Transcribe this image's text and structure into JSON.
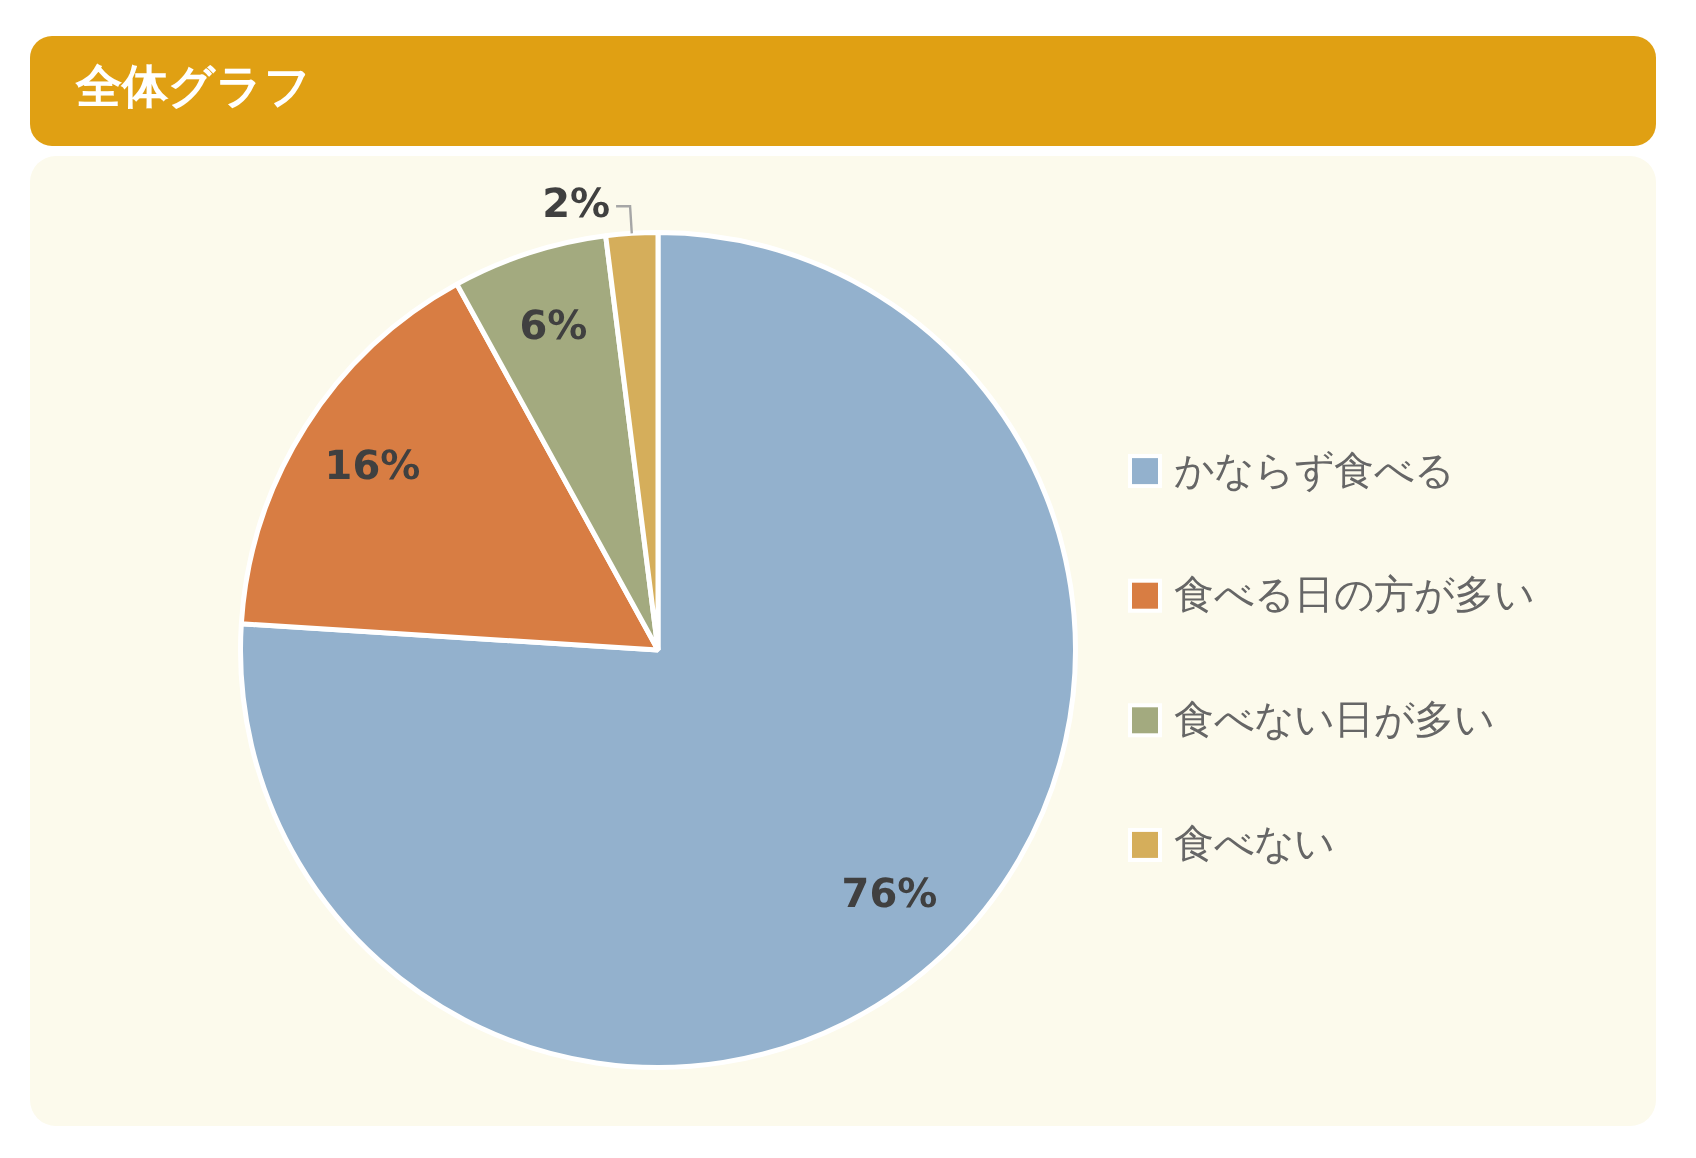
{
  "chart_data": {
    "type": "pie",
    "title": "全体グラフ",
    "categories": [
      "かならず食べる",
      "食べる日の方が多い",
      "食べない日が多い",
      "食べない"
    ],
    "values": [
      76,
      16,
      6,
      2
    ],
    "colors": [
      "#93b1cd",
      "#d87d43",
      "#a3aa7f",
      "#d5ae5b"
    ],
    "value_labels": [
      "76%",
      "16%",
      "6%",
      "2%"
    ],
    "legend": "right"
  }
}
